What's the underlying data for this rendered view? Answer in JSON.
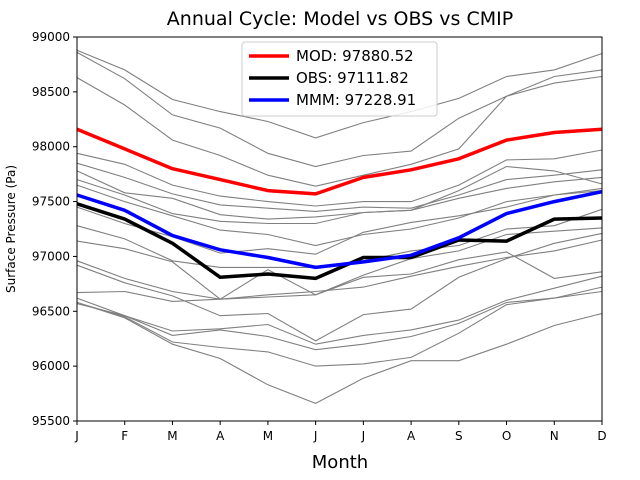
{
  "chart_data": {
    "type": "line",
    "title": "Annual Cycle: Model vs OBS vs CMIP",
    "xlabel": "Month",
    "ylabel": "Surface Pressure (Pa)",
    "categories": [
      "J",
      "F",
      "M",
      "A",
      "M",
      "J",
      "J",
      "A",
      "S",
      "O",
      "N",
      "D"
    ],
    "ylim": [
      95500,
      99000
    ],
    "yticks": [
      95500,
      96000,
      96500,
      97000,
      97500,
      98000,
      98500,
      99000
    ],
    "legend_position": "upper-center",
    "series": [
      {
        "name": "MOD",
        "legend_label": "MOD: 97880.52",
        "color": "#ff0000",
        "width": 3.5,
        "values": [
          98160,
          97980,
          97800,
          97700,
          97600,
          97570,
          97720,
          97790,
          97890,
          98060,
          98130,
          98160
        ]
      },
      {
        "name": "OBS",
        "legend_label": "OBS: 97111.82",
        "color": "#000000",
        "width": 3.5,
        "values": [
          97480,
          97340,
          97120,
          96810,
          96840,
          96800,
          96990,
          96990,
          97150,
          97140,
          97340,
          97350
        ]
      },
      {
        "name": "MMM",
        "legend_label": "MMM: 97228.91",
        "color": "#0000ff",
        "width": 3.5,
        "values": [
          97560,
          97420,
          97190,
          97060,
          96990,
          96900,
          96950,
          97010,
          97170,
          97390,
          97500,
          97590
        ]
      }
    ],
    "cmip_color": "#808080",
    "cmip_models": [
      [
        98880,
        98700,
        98430,
        98320,
        98230,
        98080,
        98220,
        98320,
        98440,
        98640,
        98700,
        98850
      ],
      [
        98860,
        98620,
        98290,
        98170,
        97940,
        97820,
        97920,
        97960,
        98260,
        98460,
        98640,
        98700
      ],
      [
        98630,
        98380,
        98060,
        97920,
        97740,
        97640,
        97740,
        97840,
        97980,
        98460,
        98580,
        98640
      ],
      [
        97940,
        97840,
        97650,
        97550,
        97500,
        97460,
        97500,
        97500,
        97650,
        97880,
        97890,
        97970
      ],
      [
        97850,
        97720,
        97570,
        97470,
        97440,
        97410,
        97450,
        97440,
        97560,
        97700,
        97740,
        97790
      ],
      [
        97780,
        97580,
        97530,
        97380,
        97340,
        97360,
        97400,
        97420,
        97530,
        97620,
        97680,
        97720
      ],
      [
        97700,
        97560,
        97390,
        97320,
        97300,
        97300,
        97400,
        97420,
        97600,
        97820,
        97780,
        97660
      ],
      [
        97650,
        97500,
        97370,
        97240,
        97200,
        97100,
        97200,
        97250,
        97350,
        97500,
        97560,
        97600
      ],
      [
        97450,
        97300,
        97180,
        97030,
        97070,
        97020,
        97220,
        97310,
        97370,
        97450,
        97560,
        97620
      ],
      [
        97280,
        97160,
        96960,
        96900,
        96900,
        96900,
        96960,
        97050,
        97100,
        97250,
        97280,
        97430
      ],
      [
        97140,
        97070,
        96950,
        96610,
        96880,
        96650,
        96830,
        96980,
        97050,
        97200,
        97230,
        97260
      ],
      [
        96960,
        96800,
        96680,
        96610,
        96650,
        96680,
        96720,
        96820,
        96910,
        96990,
        97050,
        97150
      ],
      [
        96920,
        96760,
        96640,
        96460,
        96480,
        96230,
        96470,
        96520,
        96810,
        96980,
        97120,
        97210
      ],
      [
        96670,
        96680,
        96590,
        96610,
        96630,
        96650,
        96810,
        96840,
        96970,
        97040,
        96800,
        96860
      ],
      [
        96620,
        96460,
        96320,
        96340,
        96380,
        96200,
        96280,
        96330,
        96420,
        96600,
        96710,
        96820
      ],
      [
        96570,
        96460,
        96280,
        96330,
        96270,
        96150,
        96200,
        96270,
        96390,
        96580,
        96620,
        96680
      ],
      [
        96580,
        96450,
        96220,
        96170,
        96130,
        96000,
        96020,
        96080,
        96300,
        96560,
        96620,
        96720
      ],
      [
        96580,
        96440,
        96200,
        96070,
        95830,
        95660,
        95890,
        96050,
        96050,
        96200,
        96370,
        96480
      ]
    ]
  }
}
